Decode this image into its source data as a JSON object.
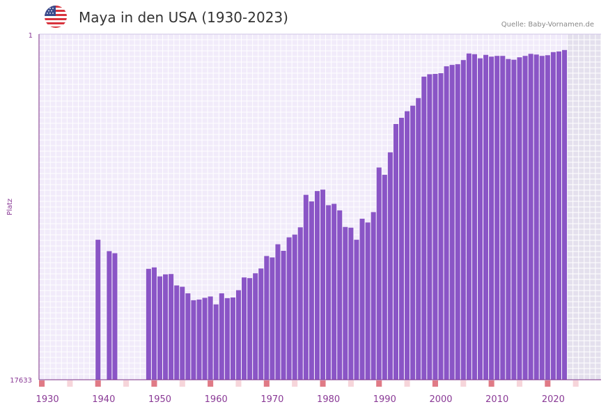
{
  "header": {
    "title": "Maya in den USA (1930-2023)",
    "source": "Quelle: Baby-Vornamen.de"
  },
  "colors": {
    "bar": "#8a55c6",
    "plot_bg": "#f1ebfa",
    "future_bg": "#e4e0ed",
    "grid": "#ffffff",
    "axis": "#7a2d86",
    "axis_text": "#8a3a96",
    "decade_marker": "#e07a86",
    "year_marker_light": "#f6d5da"
  },
  "chart_data": {
    "type": "bar",
    "title": "Maya in den USA (1930-2023)",
    "xlabel": "",
    "ylabel": "Platz",
    "y_top_label": "1",
    "y_bottom_label": "17633",
    "x_range": [
      1929,
      2029
    ],
    "x_tick_labels": [
      "1930",
      "1940",
      "1950",
      "1960",
      "1970",
      "1980",
      "1990",
      "2000",
      "2010",
      "2020"
    ],
    "x_tick_years": [
      1930,
      1940,
      1950,
      1960,
      1970,
      1980,
      1990,
      2000,
      2010,
      2020
    ],
    "future_from_year": 2023,
    "grid": true,
    "bars_note": "values = relative bar height (0 = bottom / rank 17633, 1 = top / rank 1)",
    "years": [
      1939,
      1941,
      1942,
      1948,
      1949,
      1950,
      1951,
      1952,
      1953,
      1954,
      1955,
      1956,
      1957,
      1958,
      1959,
      1960,
      1961,
      1962,
      1963,
      1964,
      1965,
      1966,
      1967,
      1968,
      1969,
      1970,
      1971,
      1972,
      1973,
      1974,
      1975,
      1976,
      1977,
      1978,
      1979,
      1980,
      1981,
      1982,
      1983,
      1984,
      1985,
      1986,
      1987,
      1988,
      1989,
      1990,
      1991,
      1992,
      1993,
      1994,
      1995,
      1996,
      1997,
      1998,
      1999,
      2000,
      2001,
      2002,
      2003,
      2004,
      2005,
      2006,
      2007,
      2008,
      2009,
      2010,
      2011,
      2012,
      2013,
      2014,
      2015,
      2016,
      2017,
      2018,
      2019,
      2020,
      2021,
      2022
    ],
    "values": [
      0.405,
      0.372,
      0.366,
      0.321,
      0.325,
      0.299,
      0.305,
      0.306,
      0.273,
      0.269,
      0.25,
      0.23,
      0.232,
      0.237,
      0.241,
      0.218,
      0.25,
      0.236,
      0.238,
      0.259,
      0.296,
      0.294,
      0.308,
      0.322,
      0.358,
      0.354,
      0.392,
      0.373,
      0.412,
      0.42,
      0.441,
      0.535,
      0.516,
      0.546,
      0.55,
      0.505,
      0.509,
      0.49,
      0.442,
      0.44,
      0.405,
      0.466,
      0.455,
      0.485,
      0.614,
      0.593,
      0.658,
      0.74,
      0.758,
      0.777,
      0.793,
      0.815,
      0.877,
      0.884,
      0.885,
      0.887,
      0.907,
      0.911,
      0.913,
      0.925,
      0.944,
      0.942,
      0.93,
      0.94,
      0.935,
      0.937,
      0.937,
      0.928,
      0.926,
      0.933,
      0.937,
      0.943,
      0.941,
      0.937,
      0.939,
      0.948,
      0.95,
      0.954
    ],
    "decade_marker_years": [
      1929,
      1939,
      1949,
      1959,
      1969,
      1979,
      1989,
      1999,
      2009,
      2019
    ],
    "light_marker_years": [
      1934,
      1944,
      1954,
      1964,
      1974,
      1984,
      1994,
      2004,
      2014,
      2024
    ]
  }
}
